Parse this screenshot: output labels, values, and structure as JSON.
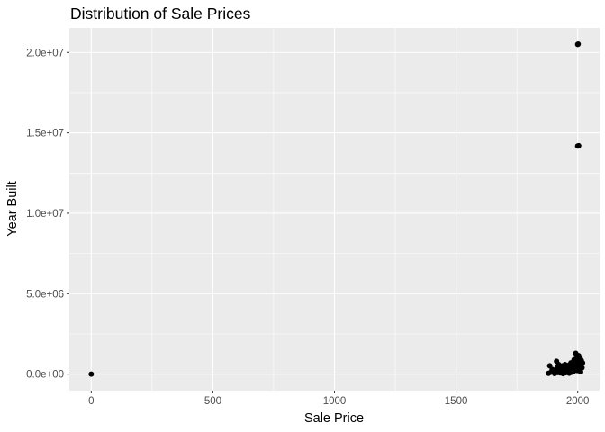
{
  "chart_data": {
    "type": "scatter",
    "title": "Distribution of Sale Prices",
    "xlabel": "Sale Price",
    "ylabel": "Year Built",
    "xlim": [
      -90,
      2090
    ],
    "ylim": [
      -1025000,
      21525000
    ],
    "x_ticks": [
      0,
      500,
      1000,
      1500,
      2000
    ],
    "x_tick_labels": [
      "0",
      "500",
      "1000",
      "1500",
      "2000"
    ],
    "y_ticks": [
      0,
      5000000,
      10000000,
      15000000,
      20000000
    ],
    "y_tick_labels": [
      "0.0e+00",
      "5.0e+06",
      "1.0e+07",
      "1.5e+07",
      "2.0e+07"
    ],
    "grid": true,
    "legend": "none",
    "colors": {
      "panel_background": "#ebebeb",
      "grid_major": "#ffffff",
      "point": "#000000"
    },
    "points": [
      {
        "x": 0,
        "y": 0
      },
      {
        "x": 2000,
        "y": 20500000
      },
      {
        "x": 2002,
        "y": 20520000
      },
      {
        "x": 2004,
        "y": 14200000
      },
      {
        "x": 2000,
        "y": 14180000
      },
      {
        "x": 1880,
        "y": 50000
      },
      {
        "x": 1885,
        "y": 520000
      },
      {
        "x": 1890,
        "y": 120000
      },
      {
        "x": 1895,
        "y": 300000
      },
      {
        "x": 1900,
        "y": 150000
      },
      {
        "x": 1905,
        "y": 40000
      },
      {
        "x": 1910,
        "y": 250000
      },
      {
        "x": 1913,
        "y": 800000
      },
      {
        "x": 1915,
        "y": 400000
      },
      {
        "x": 1918,
        "y": 100000
      },
      {
        "x": 1920,
        "y": 350000
      },
      {
        "x": 1922,
        "y": 600000
      },
      {
        "x": 1925,
        "y": 200000
      },
      {
        "x": 1928,
        "y": 80000
      },
      {
        "x": 1930,
        "y": 450000
      },
      {
        "x": 1933,
        "y": 280000
      },
      {
        "x": 1935,
        "y": 150000
      },
      {
        "x": 1938,
        "y": 520000
      },
      {
        "x": 1940,
        "y": 30000
      },
      {
        "x": 1942,
        "y": 380000
      },
      {
        "x": 1945,
        "y": 220000
      },
      {
        "x": 1948,
        "y": 600000
      },
      {
        "x": 1950,
        "y": 90000
      },
      {
        "x": 1952,
        "y": 330000
      },
      {
        "x": 1955,
        "y": 480000
      },
      {
        "x": 1958,
        "y": 160000
      },
      {
        "x": 1960,
        "y": 270000
      },
      {
        "x": 1962,
        "y": 550000
      },
      {
        "x": 1965,
        "y": 60000
      },
      {
        "x": 1968,
        "y": 400000
      },
      {
        "x": 1970,
        "y": 210000
      },
      {
        "x": 1972,
        "y": 700000
      },
      {
        "x": 1975,
        "y": 120000
      },
      {
        "x": 1978,
        "y": 360000
      },
      {
        "x": 1980,
        "y": 500000
      },
      {
        "x": 1983,
        "y": 180000
      },
      {
        "x": 1985,
        "y": 900000
      },
      {
        "x": 1988,
        "y": 290000
      },
      {
        "x": 1990,
        "y": 650000
      },
      {
        "x": 1992,
        "y": 1300000
      },
      {
        "x": 1994,
        "y": 420000
      },
      {
        "x": 1996,
        "y": 1000000
      },
      {
        "x": 1998,
        "y": 230000
      },
      {
        "x": 2000,
        "y": 750000
      },
      {
        "x": 2002,
        "y": 480000
      },
      {
        "x": 2004,
        "y": 1150000
      },
      {
        "x": 2006,
        "y": 320000
      },
      {
        "x": 2008,
        "y": 600000
      },
      {
        "x": 2010,
        "y": 1000000
      },
      {
        "x": 2012,
        "y": 140000
      },
      {
        "x": 2015,
        "y": 850000
      },
      {
        "x": 2018,
        "y": 400000
      },
      {
        "x": 2020,
        "y": 700000
      }
    ]
  }
}
